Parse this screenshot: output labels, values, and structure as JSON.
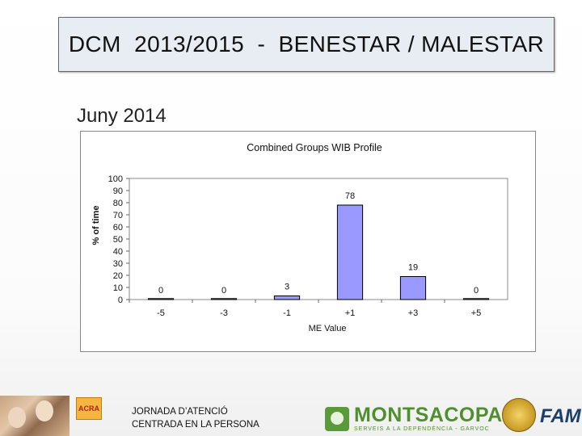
{
  "slide": {
    "title": "DCM  2013/2015  -  BENESTAR / MALESTAR",
    "subtitle": "Juny 2014"
  },
  "chart_data": {
    "type": "bar",
    "title": "Combined Groups WIB Profile",
    "xlabel": "ME Value",
    "ylabel": "% of time",
    "categories": [
      "-5",
      "-3",
      "-1",
      "+1",
      "+3",
      "+5"
    ],
    "values": [
      0,
      0,
      3,
      78,
      19,
      0
    ],
    "data_labels": [
      "0",
      "0",
      "3",
      "78",
      "19",
      "0"
    ],
    "ylim": [
      0,
      100
    ],
    "yticks": [
      "0",
      "10",
      "20",
      "30",
      "40",
      "50",
      "60",
      "70",
      "80",
      "90",
      "100"
    ],
    "bar_color": "#9999ff",
    "grid": false,
    "legend": "none"
  },
  "footer": {
    "line1": "JORNADA D’ATENCIÓ",
    "line2": "CENTRADA EN LA PERSONA",
    "small_logo": "ACRA",
    "brand": "MONTSACOPA",
    "brand_sub": "SERVEIS A LA DEPENDÈNCIA - GARVOC",
    "right_logo": "FAM"
  }
}
